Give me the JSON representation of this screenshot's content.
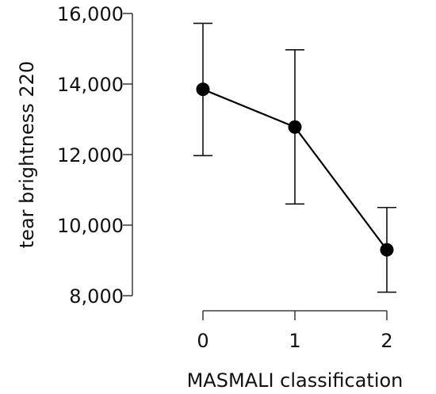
{
  "chart_data": {
    "type": "line",
    "title": "",
    "xlabel": "MASMALI classification",
    "ylabel": "tear brightness 220",
    "categories": [
      "0",
      "1",
      "2"
    ],
    "y_ticks": [
      8000,
      10000,
      12000,
      14000,
      16000
    ],
    "y_tick_labels": [
      "8,000",
      "10,000",
      "12,000",
      "14,000",
      "16,000"
    ],
    "ylim": [
      8000,
      16000
    ],
    "grid": false,
    "legend": "none",
    "series": [
      {
        "color": "#000000",
        "values": [
          13850,
          12780,
          9300
        ],
        "error_low": [
          11970,
          10600,
          8100
        ],
        "error_high": [
          15720,
          14970,
          10500
        ]
      }
    ]
  }
}
